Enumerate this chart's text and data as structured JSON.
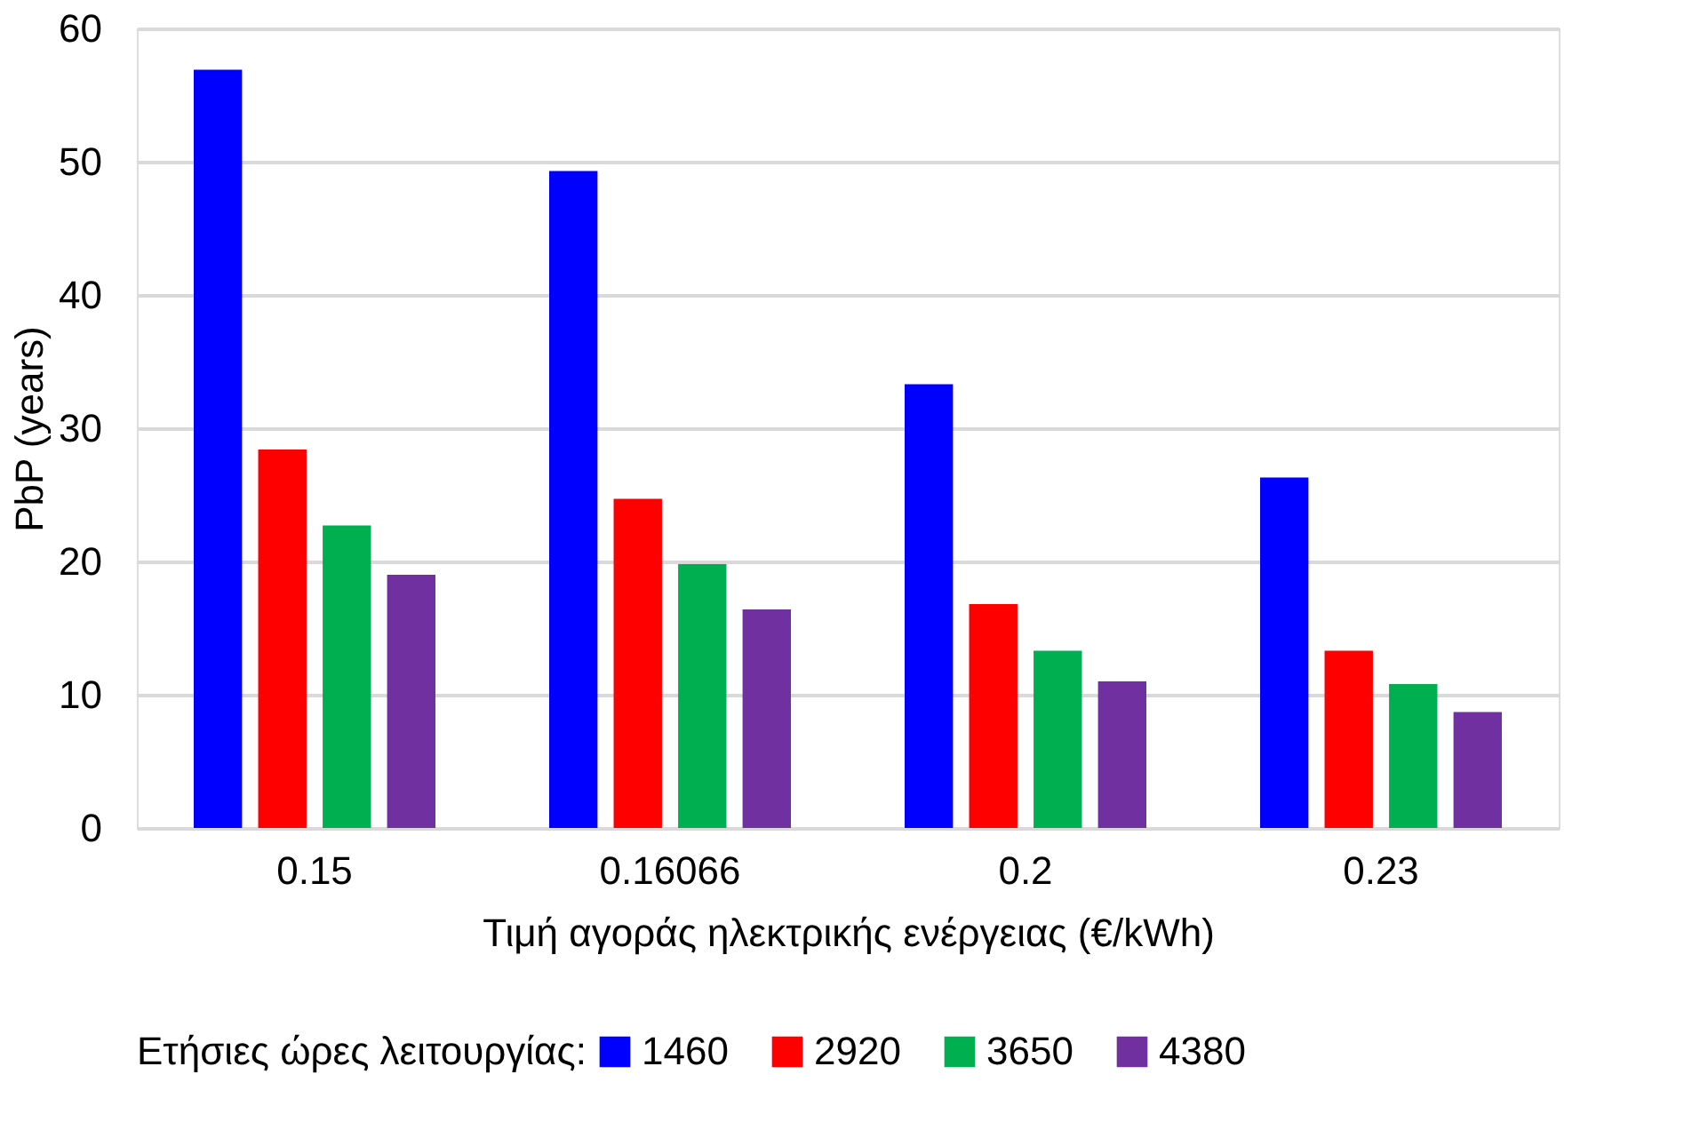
{
  "chart_data": {
    "type": "bar",
    "xlabel": "Τιμή αγοράς ηλεκτρικής ενέργειας (€/kWh)",
    "ylabel": "PbP (years)",
    "legend_title": "Ετήσιες ώρες λειτουργίας:",
    "categories": [
      "0.15",
      "0.16066",
      "0.2",
      "0.23"
    ],
    "series": [
      {
        "name": "1460",
        "color": "#0000ff",
        "values": [
          56.9,
          49.3,
          33.3,
          26.3
        ]
      },
      {
        "name": "2920",
        "color": "#ff0000",
        "values": [
          28.4,
          24.7,
          16.8,
          13.3
        ]
      },
      {
        "name": "3650",
        "color": "#00b050",
        "values": [
          22.7,
          19.8,
          13.3,
          10.8
        ]
      },
      {
        "name": "4380",
        "color": "#7030a0",
        "values": [
          19.0,
          16.4,
          11.0,
          8.7
        ]
      }
    ],
    "ylim": [
      0,
      60
    ],
    "yticks": [
      0,
      10,
      20,
      30,
      40,
      50,
      60
    ],
    "grid": "y",
    "legend": "bottom"
  }
}
